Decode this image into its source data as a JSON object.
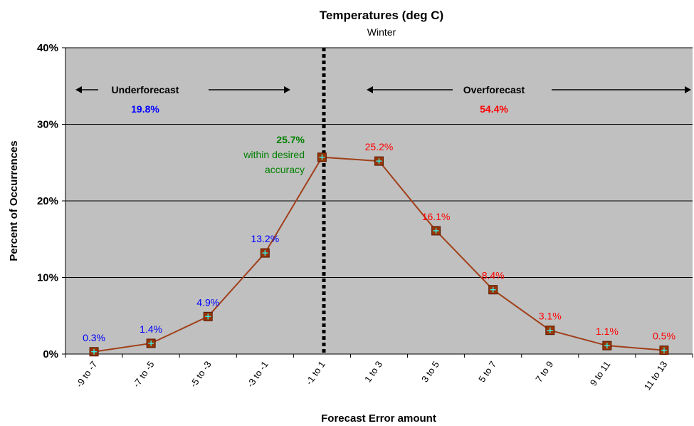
{
  "colors": {
    "plot_bg": "#c0c0c0",
    "line": "#a0401a",
    "marker_fill": "#993300",
    "marker_cross": "#33ffff",
    "under_label": "#0000ff",
    "over_label": "#ff0000",
    "accuracy_label": "#008000"
  },
  "annotations": {
    "under_label": "Underforecast",
    "under_pct": "19.8%",
    "over_label": "Overforecast",
    "over_pct": "54.4%",
    "accuracy_pct": "25.7%",
    "accuracy_line1": "within desired",
    "accuracy_line2": "accuracy"
  },
  "chart_data": {
    "type": "line",
    "title": "Temperatures (deg C)",
    "subtitle": "Winter",
    "xlabel": "Forecast Error amount",
    "ylabel": "Percent of Occurrences",
    "categories": [
      "-9 to -7",
      "-7 to -5",
      "-5 to -3",
      "-3 to -1",
      "-1 to 1",
      "1 to 3",
      "3 to 5",
      "5 to 7",
      "7 to 9",
      "9 to 11",
      "11 to 13"
    ],
    "series": [
      {
        "values": [
          0.3,
          1.4,
          4.9,
          13.2,
          25.7,
          25.2,
          16.1,
          8.4,
          3.1,
          1.1,
          0.5
        ]
      }
    ],
    "data_labels": [
      "0.3%",
      "1.4%",
      "4.9%",
      "13.2%",
      "",
      "25.2%",
      "16.1%",
      "8.4%",
      "3.1%",
      "1.1%",
      "0.5%"
    ],
    "y_ticks": [
      "0%",
      "10%",
      "20%",
      "30%",
      "40%"
    ],
    "y_tick_values": [
      0,
      10,
      20,
      30,
      40
    ],
    "ylim": [
      0,
      40
    ],
    "grid": true,
    "legend": "none"
  }
}
